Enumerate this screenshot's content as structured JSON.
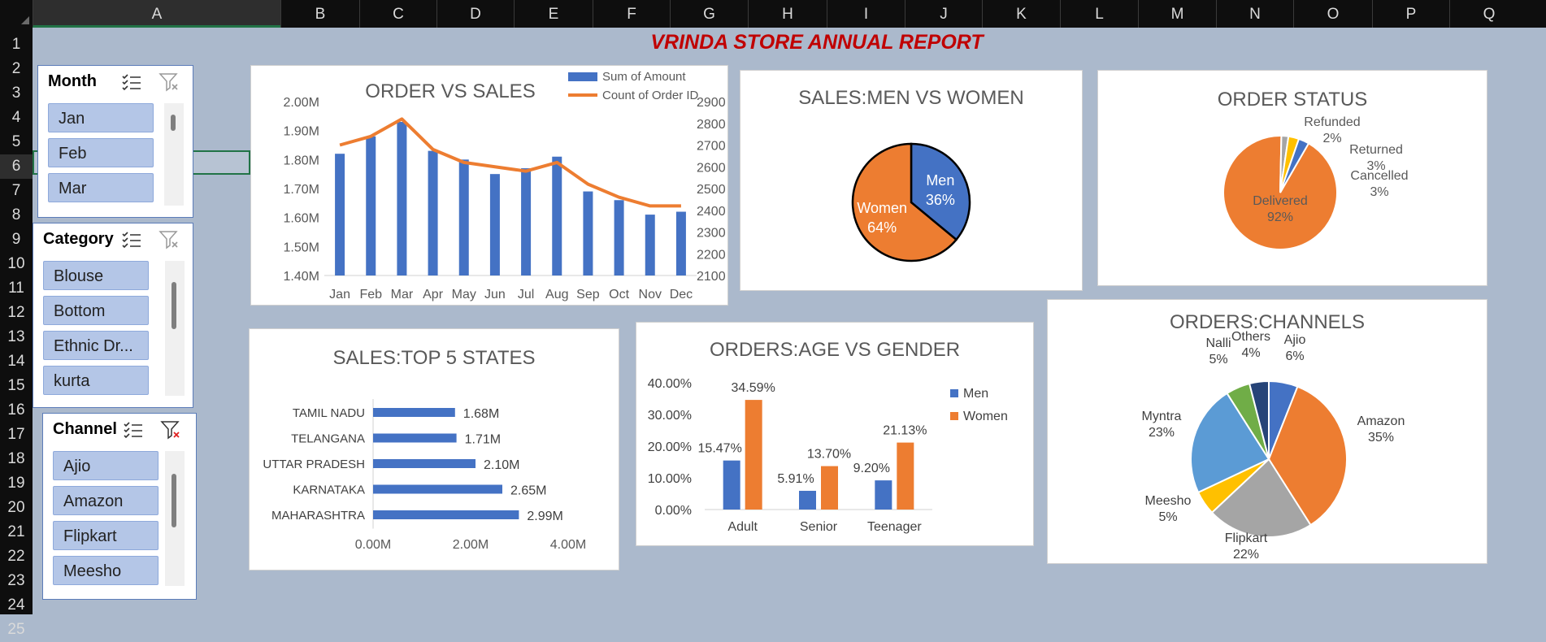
{
  "report_title": "VRINDA STORE ANNUAL REPORT",
  "columns": [
    "A",
    "B",
    "C",
    "D",
    "E",
    "F",
    "G",
    "H",
    "I",
    "J",
    "K",
    "L",
    "M",
    "N",
    "O",
    "P",
    "Q"
  ],
  "rows": [
    "1",
    "2",
    "3",
    "4",
    "5",
    "6",
    "7",
    "8",
    "9",
    "10",
    "11",
    "12",
    "13",
    "14",
    "15",
    "16",
    "17",
    "18",
    "19",
    "20",
    "21",
    "22",
    "23",
    "24",
    "25"
  ],
  "selected_cell": "A6",
  "slicers": {
    "month": {
      "title": "Month",
      "items": [
        "Jan",
        "Feb",
        "Mar"
      ]
    },
    "category": {
      "title": "Category",
      "items": [
        "Blouse",
        "Bottom",
        "Ethnic Dr...",
        "kurta"
      ]
    },
    "channel": {
      "title": "Channel",
      "items": [
        "Ajio",
        "Amazon",
        "Flipkart",
        "Meesho"
      ]
    }
  },
  "colors": {
    "blue": "#4472C4",
    "orange": "#ED7D31",
    "gray": "#A5A5A5",
    "yellow": "#FFC000",
    "lightblue": "#5B9BD5",
    "green": "#70AD47",
    "navy": "#264478",
    "title_red": "#C00000"
  },
  "chart_data": [
    {
      "id": "order_vs_sales",
      "type": "bar",
      "title": "ORDER VS SALES",
      "categories": [
        "Jan",
        "Feb",
        "Mar",
        "Apr",
        "May",
        "Jun",
        "Jul",
        "Aug",
        "Sep",
        "Oct",
        "Nov",
        "Dec"
      ],
      "series": [
        {
          "name": "Sum of Amount",
          "type": "bar",
          "axis": "left",
          "values": [
            1.82,
            1.88,
            1.93,
            1.83,
            1.8,
            1.75,
            1.77,
            1.81,
            1.69,
            1.66,
            1.61,
            1.62
          ]
        },
        {
          "name": "Count of Order ID",
          "type": "line",
          "axis": "right",
          "values": [
            2700,
            2740,
            2820,
            2680,
            2620,
            2600,
            2580,
            2620,
            2520,
            2460,
            2420,
            2420
          ]
        }
      ],
      "y_left": {
        "min": 1.4,
        "max": 2.0,
        "ticks": [
          "1.40M",
          "1.50M",
          "1.60M",
          "1.70M",
          "1.80M",
          "1.90M",
          "2.00M"
        ]
      },
      "y_right": {
        "min": 2100,
        "max": 2900,
        "ticks": [
          "2100",
          "2200",
          "2300",
          "2400",
          "2500",
          "2600",
          "2700",
          "2800",
          "2900"
        ]
      },
      "legend": "top-right"
    },
    {
      "id": "sales_men_women",
      "type": "pie",
      "title": "SALES:MEN VS WOMEN",
      "slices": [
        {
          "label": "Men",
          "value": 36,
          "pct": "36%",
          "color": "#4472C4"
        },
        {
          "label": "Women",
          "value": 64,
          "pct": "64%",
          "color": "#ED7D31"
        }
      ]
    },
    {
      "id": "order_status",
      "type": "pie",
      "title": "ORDER STATUS",
      "slices": [
        {
          "label": "Delivered",
          "value": 92,
          "pct": "92%",
          "color": "#ED7D31"
        },
        {
          "label": "Refunded",
          "value": 2,
          "pct": "2%",
          "color": "#A5A5A5"
        },
        {
          "label": "Returned",
          "value": 3,
          "pct": "3%",
          "color": "#FFC000"
        },
        {
          "label": "Cancelled",
          "value": 3,
          "pct": "3%",
          "color": "#4472C4"
        }
      ]
    },
    {
      "id": "sales_top5_states",
      "type": "bar",
      "orientation": "horizontal",
      "title": "SALES:TOP 5 STATES",
      "categories": [
        "TAMIL NADU",
        "TELANGANA",
        "UTTAR PRADESH",
        "KARNATAKA",
        "MAHARASHTRA"
      ],
      "values": [
        1.68,
        1.71,
        2.1,
        2.65,
        2.99
      ],
      "labels": [
        "1.68M",
        "1.71M",
        "2.10M",
        "2.65M",
        "2.99M"
      ],
      "xlim": [
        0,
        4
      ],
      "ticks": [
        "0.00M",
        "2.00M",
        "4.00M"
      ]
    },
    {
      "id": "orders_age_gender",
      "type": "bar",
      "title": "ORDERS:AGE VS GENDER",
      "categories": [
        "Adult",
        "Senior",
        "Teenager"
      ],
      "series": [
        {
          "name": "Men",
          "values": [
            15.47,
            5.91,
            9.2
          ],
          "labels": [
            "15.47%",
            "5.91%",
            "9.20%"
          ],
          "color": "#4472C4"
        },
        {
          "name": "Women",
          "values": [
            34.59,
            13.7,
            21.13
          ],
          "labels": [
            "34.59%",
            "13.70%",
            "21.13%"
          ],
          "color": "#ED7D31"
        }
      ],
      "ylim": [
        0,
        40
      ],
      "ticks": [
        "0.00%",
        "10.00%",
        "20.00%",
        "30.00%",
        "40.00%"
      ],
      "legend": "right"
    },
    {
      "id": "orders_channels",
      "type": "pie",
      "title": "ORDERS:CHANNELS",
      "slices": [
        {
          "label": "Ajio",
          "value": 6,
          "pct": "6%",
          "color": "#4472C4"
        },
        {
          "label": "Amazon",
          "value": 35,
          "pct": "35%",
          "color": "#ED7D31"
        },
        {
          "label": "Flipkart",
          "value": 22,
          "pct": "22%",
          "color": "#A5A5A5"
        },
        {
          "label": "Meesho",
          "value": 5,
          "pct": "5%",
          "color": "#FFC000"
        },
        {
          "label": "Myntra",
          "value": 23,
          "pct": "23%",
          "color": "#5B9BD5"
        },
        {
          "label": "Nalli",
          "value": 5,
          "pct": "5%",
          "color": "#70AD47"
        },
        {
          "label": "Others",
          "value": 4,
          "pct": "4%",
          "color": "#264478"
        }
      ]
    }
  ]
}
